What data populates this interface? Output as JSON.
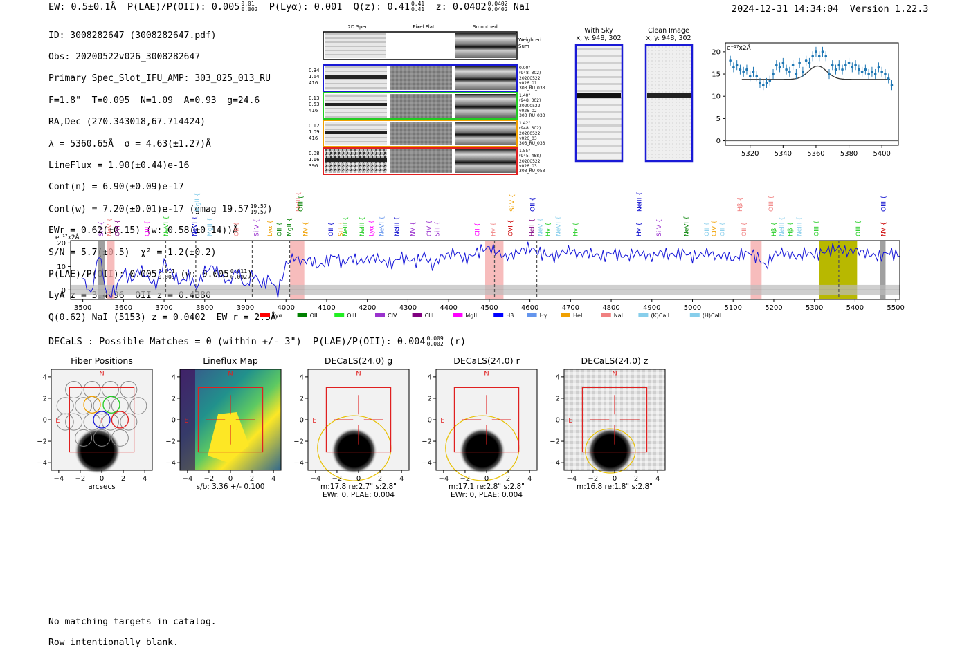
{
  "header": {
    "ew": "EW: 0.5±0.1Å",
    "plae_label": "P(LAE)/P(OII): 0.005",
    "plae_hi": "0.01",
    "plae_lo": "0.002",
    "plya": "P(Lyα): 0.001",
    "qz_label": "Q(z): 0.41",
    "qz_hi": "0.41",
    "qz_lo": "0.41",
    "z_label": "z: 0.0402",
    "z_hi": "0.0402",
    "z_lo": "0.0402",
    "line_name": "NaI",
    "timestamp": "2024-12-31 14:34:04",
    "version": "Version 1.22.3"
  },
  "info": {
    "id": "ID: 3008282647 (3008282647.pdf)",
    "obs": "Obs: 20200522v026_3008282647",
    "primary": "Primary Spec_Slot_IFU_AMP: 303_025_013_RU",
    "params": "F=1.8\"  T=0.095  N=1.09  A=0.93  g=24.6",
    "radec": "RA,Dec (270.343018,67.714424)",
    "lambda": "λ = 5360.65Å  σ = 4.63(±1.27)Å",
    "lineflux": "LineFlux = 1.90(±0.44)e-16",
    "contn": "Cont(n) = 6.90(±0.09)e-17",
    "contw": "Cont(w) = 7.20(±0.01)e-17 (gmag 19.57",
    "contw_hi": "19.57",
    "contw_lo": "19.57",
    "ewr": "EWr = 0.62(±0.15) (w: 0.58(±0.14))Å",
    "sn": "S/N = 5.7(±0.5)  χ² = 1.2(±0.2)",
    "plae": "P(LAE)/P(OII): 0.005",
    "plae_hi": "0.011",
    "plae_lo": "0.003",
    "plae_w": "(w: 0.005",
    "plae_w_hi": "0.011",
    "plae_w_lo": "0.002",
    "lyaz": "LyA z = 3.4096  OII z = 0.4380",
    "q": "Q(0.62) NaI (5153) z = 0.0402  EW r = 2.5Å"
  },
  "cutouts": {
    "col_2d": "2D Spec",
    "col_flat": "Pixel Flat",
    "col_smooth": "Smoothed",
    "weighted": "Weighted Sum",
    "rows": [
      {
        "v1": "0.34",
        "v2": "1.64",
        "v3": "416",
        "d1": "0.00\"",
        "d2": "(948, 302)",
        "d3": "20200522",
        "d4": "v026_01",
        "d5": "303_RU_033",
        "color": "#1a1ad6"
      },
      {
        "v1": "0.13",
        "v2": "0.53",
        "v3": "416",
        "d1": "1.40\"",
        "d2": "(948, 302)",
        "d3": "20200522",
        "d4": "v026_02",
        "d5": "303_RU_033",
        "color": "#22cc22"
      },
      {
        "v1": "0.12",
        "v2": "1.09",
        "v3": "416",
        "d1": "1.42\"",
        "d2": "(948, 302)",
        "d3": "20200522",
        "d4": "v026_03",
        "d5": "303_RU_033",
        "color": "#f0a000"
      },
      {
        "v1": "0.08",
        "v2": "1.16",
        "v3": "396",
        "d1": "1.55\"",
        "d2": "(945, 488)",
        "d3": "20200522",
        "d4": "v026_03",
        "d5": "303_RU_053",
        "color": "#e02020"
      }
    ],
    "with_sky": "With Sky",
    "with_sky_xy": "x, y: 948, 302",
    "clean": "Clean Image",
    "clean_xy": "x, y: 948, 302"
  },
  "chart_data": [
    {
      "type": "scatter",
      "name": "line-zoom",
      "ylabel": "e⁻¹⁷x2Å",
      "x": [
        5308,
        5310,
        5312,
        5314,
        5316,
        5318,
        5320,
        5322,
        5324,
        5326,
        5328,
        5330,
        5332,
        5334,
        5336,
        5338,
        5340,
        5342,
        5344,
        5346,
        5348,
        5350,
        5352,
        5354,
        5356,
        5358,
        5360,
        5362,
        5364,
        5366,
        5368,
        5370,
        5372,
        5374,
        5376,
        5378,
        5380,
        5382,
        5384,
        5386,
        5388,
        5390,
        5392,
        5394,
        5396,
        5398,
        5400,
        5402,
        5404,
        5406
      ],
      "values": [
        18,
        16.5,
        17,
        16,
        15.5,
        16,
        14.5,
        15.5,
        14.5,
        13,
        12.5,
        13,
        13.5,
        15,
        17,
        16.5,
        17.5,
        16,
        15.5,
        17,
        15,
        17.5,
        15.5,
        18,
        17.5,
        19,
        20,
        19,
        20,
        19,
        15,
        17,
        16,
        17,
        16,
        17,
        17.5,
        16.5,
        17,
        16,
        15.5,
        16,
        15,
        15.5,
        15,
        16.5,
        15.5,
        15,
        14,
        12.5
      ],
      "model_base": 13.8,
      "model_peak": 16.8,
      "model_center": 5361,
      "xticks": [
        5320,
        5340,
        5360,
        5380,
        5400
      ],
      "yticks": [
        0,
        5,
        10,
        15,
        20
      ],
      "xlim": [
        5305,
        5410
      ],
      "ylim": [
        -1,
        22
      ]
    },
    {
      "type": "line",
      "name": "full-spectrum",
      "ylabel": "e⁻¹⁷x2Å",
      "xlim": [
        3470,
        5510
      ],
      "ylim": [
        -4,
        21
      ],
      "xticks": [
        3500,
        3600,
        3700,
        3800,
        3900,
        4000,
        4100,
        4200,
        4300,
        4400,
        4500,
        4600,
        4700,
        4800,
        4900,
        5000,
        5100,
        5200,
        5300,
        5400,
        5500
      ],
      "yticks": [
        0,
        10,
        20
      ],
      "x": [
        3500,
        3520,
        3540,
        3560,
        3580,
        3600,
        3620,
        3640,
        3660,
        3680,
        3700,
        3720,
        3740,
        3760,
        3780,
        3800,
        3820,
        3840,
        3860,
        3880,
        3900,
        3920,
        3940,
        3960,
        3980,
        4000,
        4020,
        4040,
        4060,
        4080,
        4100,
        4120,
        4140,
        4160,
        4180,
        4200,
        4220,
        4240,
        4260,
        4280,
        4300,
        4320,
        4340,
        4360,
        4380,
        4400,
        4420,
        4440,
        4460,
        4480,
        4500,
        4520,
        4540,
        4560,
        4580,
        4600,
        4620,
        4640,
        4660,
        4680,
        4700,
        4720,
        4740,
        4760,
        4780,
        4800,
        4820,
        4840,
        4860,
        4880,
        4900,
        4920,
        4940,
        4960,
        4980,
        5000,
        5020,
        5040,
        5060,
        5080,
        5100,
        5120,
        5140,
        5160,
        5180,
        5200,
        5220,
        5240,
        5260,
        5280,
        5300,
        5320,
        5340,
        5360,
        5380,
        5400,
        5420,
        5440,
        5460,
        5480,
        5500
      ],
      "values": [
        5,
        -2,
        16,
        -3,
        0,
        8,
        4,
        9,
        5,
        2,
        12,
        7,
        3,
        6,
        1,
        8,
        10,
        6,
        3,
        9,
        1,
        7,
        2,
        5,
        -1,
        11,
        14,
        12,
        13,
        10,
        12,
        15,
        11,
        14,
        12,
        13,
        14,
        12,
        11,
        14,
        13,
        12,
        15,
        10,
        14,
        15,
        16,
        13,
        15,
        17,
        18,
        16,
        14,
        15,
        17,
        18,
        16,
        15,
        14,
        16,
        17,
        15,
        16,
        15,
        14,
        16,
        15,
        14,
        16,
        15,
        14,
        16,
        15,
        15,
        16,
        14,
        15,
        16,
        14,
        15,
        13,
        15,
        16,
        14,
        10,
        15,
        16,
        15,
        14,
        16,
        15,
        16,
        17,
        18,
        16,
        17,
        16,
        15,
        14,
        16,
        15
      ],
      "shaded_pink": [
        [
          3560,
          3578
        ],
        [
          4010,
          4045
        ],
        [
          4490,
          4535
        ],
        [
          5143,
          5170
        ]
      ],
      "shaded_gray": [
        [
          3537,
          3555
        ],
        [
          5462,
          5475
        ]
      ],
      "shaded_olive": [
        [
          5312,
          5405
        ]
      ],
      "dashed_lines": [
        3704,
        3778,
        3917,
        4009,
        4513,
        4617,
        5360
      ],
      "lines": [
        {
          "name": "SiII",
          "wl": 3545,
          "color": "#9a32cd"
        },
        {
          "name": "NeV",
          "wl": 3565,
          "color": "#f08080"
        },
        {
          "name": "OVI",
          "wl": 3585,
          "color": "#800080"
        },
        {
          "name": "CIII",
          "wl": 3658,
          "color": "#ff00ff"
        },
        {
          "name": "NeVI",
          "wl": 3705,
          "color": "#22cc22"
        },
        {
          "name": "NeVI",
          "wl": 3775,
          "color": "#0000cc"
        },
        {
          "name": "MgII",
          "wl": 3812,
          "color": "#87ceeb"
        },
        {
          "name": "OII",
          "wl": 3878,
          "color": "#f08080"
        },
        {
          "name": "SiIV",
          "wl": 3927,
          "color": "#9a32cd"
        },
        {
          "name": "Lyα",
          "wl": 3960,
          "color": "#f0a000"
        },
        {
          "name": "OII",
          "wl": 3983,
          "color": "#008000"
        },
        {
          "name": "MgII",
          "wl": 4008,
          "color": "#008000"
        },
        {
          "name": "NV",
          "wl": 4048,
          "color": "#f0a000"
        },
        {
          "name": "OII",
          "wl": 4110,
          "color": "#0000cc"
        },
        {
          "name": "SiII",
          "wl": 4134,
          "color": "#f0a000"
        },
        {
          "name": "NeIII",
          "wl": 4146,
          "color": "#22cc22"
        },
        {
          "name": "NeIII",
          "wl": 4187,
          "color": "#22cc22"
        },
        {
          "name": "Lyα",
          "wl": 4210,
          "color": "#ff00ff"
        },
        {
          "name": "NeVI",
          "wl": 4235,
          "color": "#6495ed"
        },
        {
          "name": "NeIII",
          "wl": 4272,
          "color": "#0000cc"
        },
        {
          "name": "NV",
          "wl": 4312,
          "color": "#9a32cd"
        },
        {
          "name": "CIV",
          "wl": 4352,
          "color": "#9a32cd"
        },
        {
          "name": "SiII",
          "wl": 4372,
          "color": "#9a32cd"
        },
        {
          "name": "CII",
          "wl": 4470,
          "color": "#ff00ff"
        },
        {
          "name": "Hγ",
          "wl": 4510,
          "color": "#f08080"
        },
        {
          "name": "OVI",
          "wl": 4552,
          "color": "#cc0000"
        },
        {
          "name": "HeII",
          "wl": 4605,
          "color": "#800080"
        },
        {
          "name": "NeV",
          "wl": 4625,
          "color": "#87ceeb"
        },
        {
          "name": "Hγ",
          "wl": 4645,
          "color": "#22cc22"
        },
        {
          "name": "NeVI",
          "wl": 4670,
          "color": "#87ceeb"
        },
        {
          "name": "Hγ",
          "wl": 4712,
          "color": "#22cc22"
        },
        {
          "name": "Hγ",
          "wl": 4868,
          "color": "#0000cc"
        },
        {
          "name": "SiIV",
          "wl": 4917,
          "color": "#9a32cd"
        },
        {
          "name": "NeVI",
          "wl": 4985,
          "color": "#008000"
        },
        {
          "name": "OII",
          "wl": 5035,
          "color": "#87ceeb"
        },
        {
          "name": "CIV",
          "wl": 5053,
          "color": "#f0a000"
        },
        {
          "name": "OII",
          "wl": 5073,
          "color": "#87ceeb"
        },
        {
          "name": "OII",
          "wl": 5127,
          "color": "#f08080"
        },
        {
          "name": "Hβ",
          "wl": 5200,
          "color": "#22cc22"
        },
        {
          "name": "NeIII",
          "wl": 5220,
          "color": "#87ceeb"
        },
        {
          "name": "Hβ",
          "wl": 5240,
          "color": "#22cc22"
        },
        {
          "name": "NeIII",
          "wl": 5262,
          "color": "#87ceeb"
        },
        {
          "name": "OIII",
          "wl": 5305,
          "color": "#22cc22"
        },
        {
          "name": "OIII",
          "wl": 5408,
          "color": "#22cc22"
        },
        {
          "name": "NV",
          "wl": 5470,
          "color": "#cc0000"
        }
      ],
      "upper_lines": [
        {
          "name": "MgII",
          "wl": 3782,
          "color": "#87ceeb"
        },
        {
          "name": "NeIII",
          "wl": 4030,
          "color": "#f08080"
        },
        {
          "name": "OIII",
          "wl": 4036,
          "color": "#008000"
        },
        {
          "name": "SiIV",
          "wl": 4556,
          "color": "#f0a000"
        },
        {
          "name": "OII",
          "wl": 4607,
          "color": "#0000cc"
        },
        {
          "name": "NeIII",
          "wl": 4869,
          "color": "#0000cc"
        },
        {
          "name": "Hβ",
          "wl": 5117,
          "color": "#f08080"
        },
        {
          "name": "OIII",
          "wl": 5193,
          "color": "#f08080"
        },
        {
          "name": "OIII",
          "wl": 5470,
          "color": "#0000cc"
        }
      ],
      "legend": [
        {
          "label": "Lyα",
          "color": "#ff0000"
        },
        {
          "label": "OII",
          "color": "#008000"
        },
        {
          "label": "OIII",
          "color": "#22ee22"
        },
        {
          "label": "CIV",
          "color": "#9a32cd"
        },
        {
          "label": "CIII",
          "color": "#800080"
        },
        {
          "label": "MgII",
          "color": "#ff00ff"
        },
        {
          "label": "Hβ",
          "color": "#0000ff"
        },
        {
          "label": "Hγ",
          "color": "#6495ed"
        },
        {
          "label": "HeII",
          "color": "#f0a000"
        },
        {
          "label": "NaI",
          "color": "#f08080"
        },
        {
          "label": "(K)CaII",
          "color": "#87ceeb"
        },
        {
          "label": "(H)CaII",
          "color": "#87ceeb"
        }
      ]
    },
    {
      "type": "heatmap",
      "name": "decals-panels",
      "xticks": [
        -4,
        -2,
        0,
        2,
        4
      ],
      "yticks": [
        4,
        2,
        0,
        -2,
        -4
      ],
      "panels": [
        {
          "title": "Fiber Positions",
          "cap1": "arcsecs",
          "cap2": ""
        },
        {
          "title": "Lineflux Map",
          "cap1": "s/b: 3.36 +/- 0.100",
          "cap2": ""
        },
        {
          "title": "DECaLS(24.0) g",
          "cap1": "m:17.8  re:2.7\"  s:2.8\"",
          "cap2": "EWr: 0, PLAE: 0.004"
        },
        {
          "title": "DECaLS(24.0) r",
          "cap1": "m:17.1  re:2.8\"  s:2.8\"",
          "cap2": "EWr: 0, PLAE: 0.004"
        },
        {
          "title": "DECaLS(24.0) z",
          "cap1": "m:16.8  re:1.8\"  s:2.8\"",
          "cap2": ""
        }
      ],
      "compass_n": "N",
      "compass_e": "E"
    }
  ],
  "decals": {
    "line": "DECaLS : Possible Matches = 0 (within +/- 3\")  P(LAE)/P(OII): 0.004",
    "hi": "0.009",
    "lo": "0.002",
    "band": "(r)"
  },
  "footer": {
    "line1": "No matching targets in catalog.",
    "line2": "Row intentionally blank."
  }
}
